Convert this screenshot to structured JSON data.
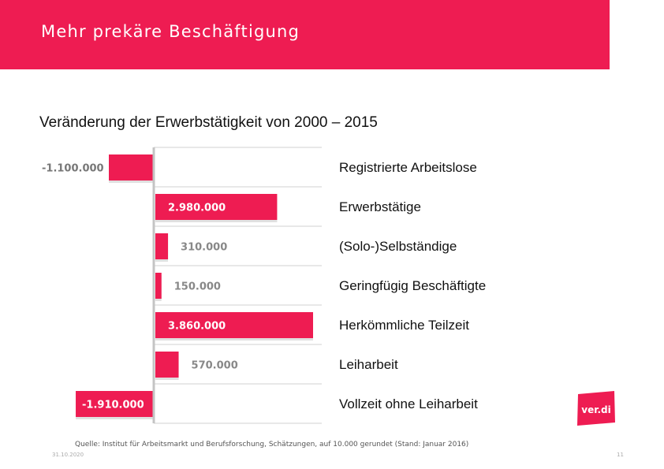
{
  "header": {
    "title": "Mehr prekäre Beschäftigung"
  },
  "subtitle": "Veränderung der Erwerbstätigkeit von 2000 – 2015",
  "chart_data": {
    "type": "bar",
    "orientation": "horizontal",
    "categories": [
      "Registrierte Arbeitslose",
      "Erwerbstätige",
      "(Solo-)Selbständige",
      "Geringfügig Beschäftigte",
      "Herkömmliche Teilzeit",
      "Leiharbeit",
      "Vollzeit ohne Leiharbeit"
    ],
    "values": [
      -1100000,
      2980000,
      310000,
      150000,
      3860000,
      570000,
      -1910000
    ],
    "value_labels": [
      "-1.100.000",
      "2.980.000",
      "310.000",
      "150.000",
      "3.860.000",
      "570.000",
      "-1.910.000"
    ],
    "title": "Veränderung der Erwerbstätigkeit von 2000 – 2015",
    "xlabel": "",
    "ylabel": "",
    "bar_color": "#ee1c52"
  },
  "footer": {
    "source": "Quelle: Institut für Arbeitsmarkt und Berufsforschung, Schätzungen, auf 10.000 gerundet (Stand: Januar 2016)",
    "date": "31.10.2020",
    "page": "11"
  },
  "logo": {
    "text": "ver.di"
  },
  "colors": {
    "accent": "#ee1c52"
  }
}
